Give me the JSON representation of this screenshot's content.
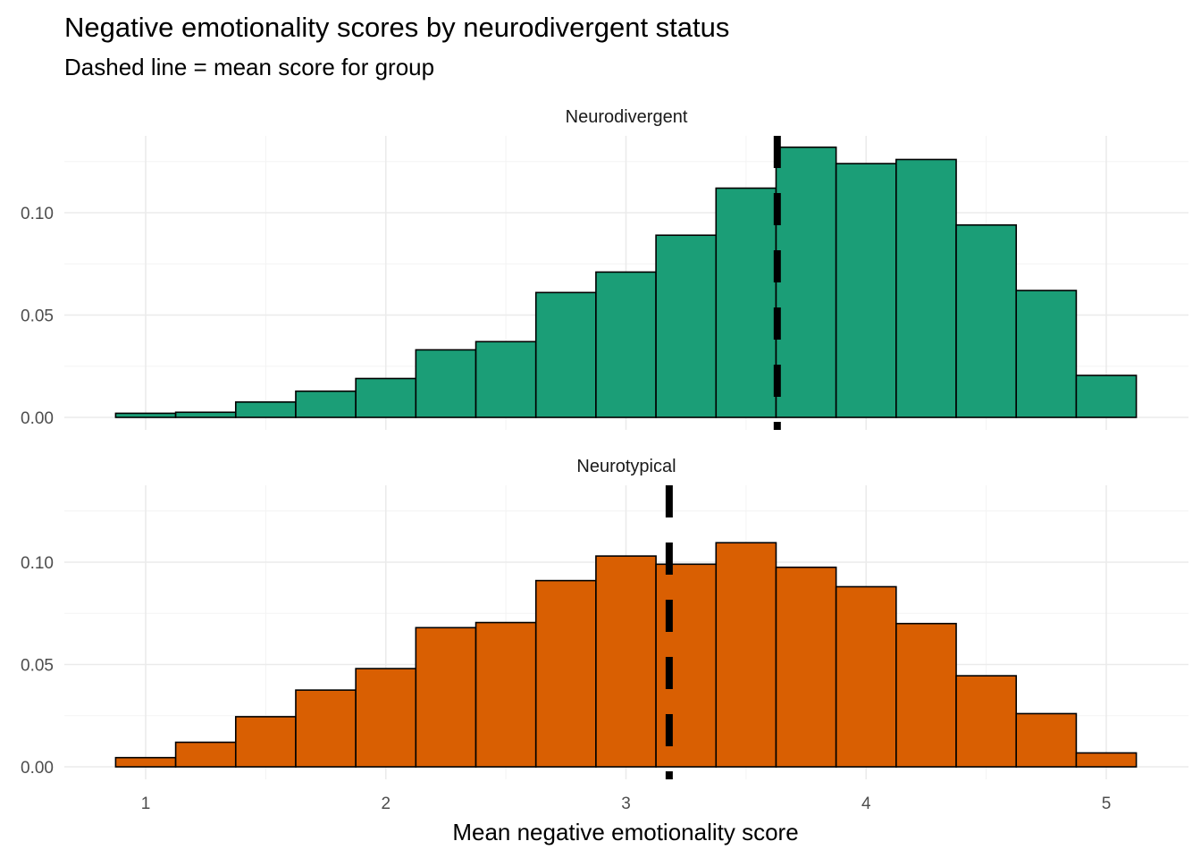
{
  "chart_data": {
    "type": "bar",
    "subtype": "histogram-facets",
    "title": "Negative emotionality scores by neurodivergent status",
    "subtitle": "Dashed line = mean score for group",
    "xlabel": "Mean negative emotionality score",
    "ylabel": "",
    "xlim": [
      0.8,
      5.2
    ],
    "ylim": [
      0,
      0.14
    ],
    "x_ticks": [
      "1",
      "2",
      "3",
      "4",
      "5"
    ],
    "x_tick_values": [
      1,
      2,
      3,
      4,
      5
    ],
    "y_ticks": [
      "0.00",
      "0.05",
      "0.10"
    ],
    "y_tick_values": [
      0,
      0.05,
      0.1
    ],
    "grid": true,
    "bin_edges": [
      0.875,
      1.125,
      1.375,
      1.625,
      1.875,
      2.125,
      2.375,
      2.625,
      2.875,
      3.125,
      3.375,
      3.625,
      3.875,
      4.125,
      4.375,
      4.625,
      4.875,
      5.125
    ],
    "facets": [
      {
        "name": "Neurodivergent",
        "color": "#1b9e77",
        "mean": 3.63,
        "values": [
          0.002,
          0.0025,
          0.0075,
          0.0128,
          0.019,
          0.033,
          0.037,
          0.061,
          0.071,
          0.089,
          0.112,
          0.132,
          0.124,
          0.126,
          0.094,
          0.062,
          0.0205
        ]
      },
      {
        "name": "Neurotypical",
        "color": "#d95f02",
        "mean": 3.18,
        "values": [
          0.0045,
          0.012,
          0.0245,
          0.0375,
          0.048,
          0.068,
          0.0705,
          0.091,
          0.103,
          0.099,
          0.1095,
          0.0975,
          0.088,
          0.07,
          0.0445,
          0.026,
          0.0068
        ]
      }
    ]
  }
}
